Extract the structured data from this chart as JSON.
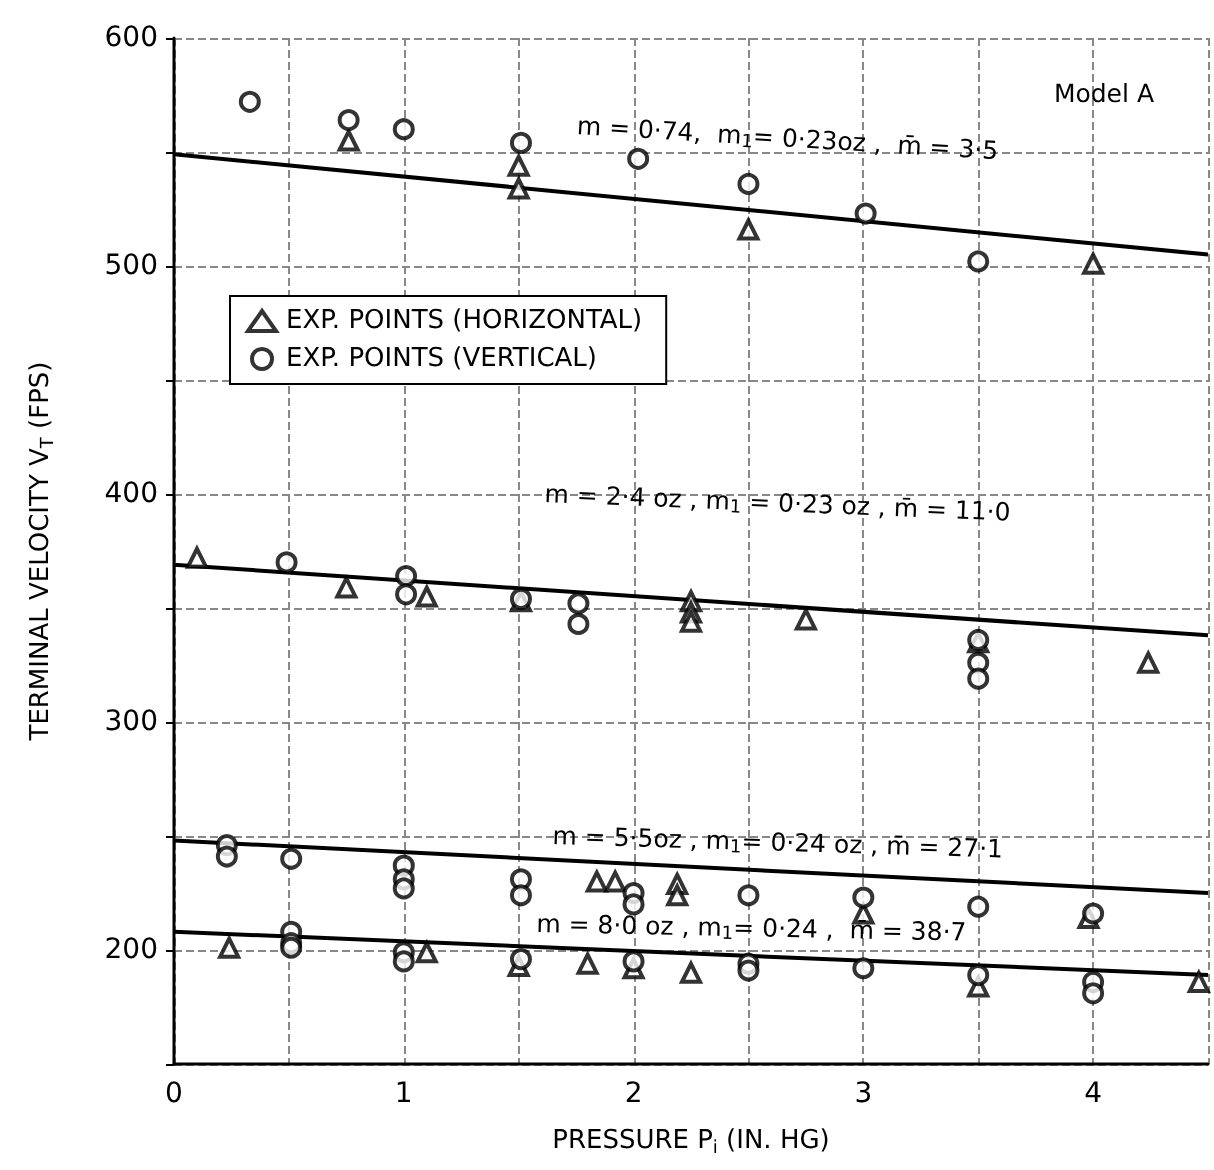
{
  "chart_data": {
    "type": "scatter",
    "xlabel": "PRESSURE P$_{i}$ (IN. HG)",
    "ylabel": "TERMINAL VELOCITY V$_{T}$ (FPS)",
    "xlim": [
      0,
      4.5
    ],
    "ylim": [
      150,
      600
    ],
    "xticks": [
      0,
      {
        "value": 0.5,
        "label": null
      },
      1,
      {
        "value": 1.5,
        "label": null
      },
      2,
      {
        "value": 2.5,
        "label": null
      },
      3,
      {
        "value": 3.5,
        "label": null
      },
      4,
      {
        "value": 4.5,
        "label": null
      }
    ],
    "yticks": [
      {
        "value": 150,
        "label": null
      },
      200,
      {
        "value": 250,
        "label": null
      },
      300,
      {
        "value": 350,
        "label": null
      },
      400,
      {
        "value": 450,
        "label": null
      },
      500,
      {
        "value": 550,
        "label": null
      },
      600
    ],
    "grid": true,
    "legend": "top left",
    "series": [
      {
        "name": "EXP. POINTS (HORIZONTAL)",
        "color": "#000000",
        "marker": "triangle",
        "x": [
          0.76,
          1.5,
          1.5,
          2.5,
          4.0,
          0.1,
          0.75,
          1.1,
          1.51,
          2.25,
          2.25,
          2.25,
          2.75,
          3.5,
          4.24,
          1.84,
          1.92,
          2.19,
          2.19,
          3.0,
          3.98,
          0.24,
          1.1,
          1.5,
          1.8,
          2.0,
          2.25,
          3.5,
          4.46
        ],
        "values": [
          555,
          544,
          534,
          516,
          501,
          372,
          359,
          355,
          353,
          353,
          348,
          344,
          345,
          335,
          326,
          230,
          230,
          229,
          224,
          216,
          214,
          201,
          199,
          193,
          194,
          192,
          190,
          184,
          186
        ]
      },
      {
        "name": "EXP. POINTS (VERTICAL)",
        "color": "#000000",
        "marker": "circle",
        "x": [
          0.33,
          0.76,
          1.0,
          1.51,
          2.02,
          2.5,
          3.01,
          3.5,
          0.49,
          1.01,
          1.01,
          1.51,
          1.76,
          1.76,
          3.5,
          3.5,
          3.5,
          0.23,
          0.23,
          0.51,
          1.0,
          1.0,
          1.0,
          1.51,
          1.51,
          2.0,
          2.0,
          2.5,
          3.0,
          3.5,
          4.0,
          0.51,
          0.51,
          0.51,
          1.0,
          1.0,
          1.51,
          2.0,
          2.5,
          2.5,
          3.0,
          3.5,
          4.0,
          4.0
        ],
        "values": [
          572,
          564,
          560,
          554,
          547,
          536,
          523,
          502,
          370,
          364,
          356,
          354,
          352,
          343,
          336,
          326,
          319,
          246,
          241,
          240,
          237,
          231,
          227,
          231,
          224,
          225,
          220,
          224,
          223,
          219,
          216,
          208,
          203,
          201,
          199,
          195,
          196,
          195,
          194,
          191,
          192,
          189,
          186,
          181
        ]
      },
      {
        "type": "line",
        "color": "#000000",
        "marker": "none",
        "x": [
          0,
          4.5
        ],
        "values": [
          549,
          505
        ]
      },
      {
        "type": "line",
        "color": "#000000",
        "marker": "none",
        "x": [
          0,
          4.5
        ],
        "values": [
          369,
          338
        ]
      },
      {
        "type": "line",
        "color": "#000000",
        "marker": "none",
        "x": [
          0,
          4.5
        ],
        "values": [
          248,
          225
        ]
      },
      {
        "type": "line",
        "color": "#000000",
        "marker": "none",
        "x": [
          0,
          4.5
        ],
        "values": [
          208,
          189
        ]
      }
    ],
    "annotations": [
      "Model A",
      "m = 0·74,  m$_{1}$= 0·23oz ,  m̄ = 3·5",
      "m = 2·4 oz , m$_{1}$ = 0·23 oz , m̄ = 11·0",
      "m = 5·5oz , m$_{1}$= 0·24 oz , m̄ = 27·1",
      "m = 8·0 oz , m$_{1}$= 0·24 ,  m̄ = 38·7"
    ]
  }
}
